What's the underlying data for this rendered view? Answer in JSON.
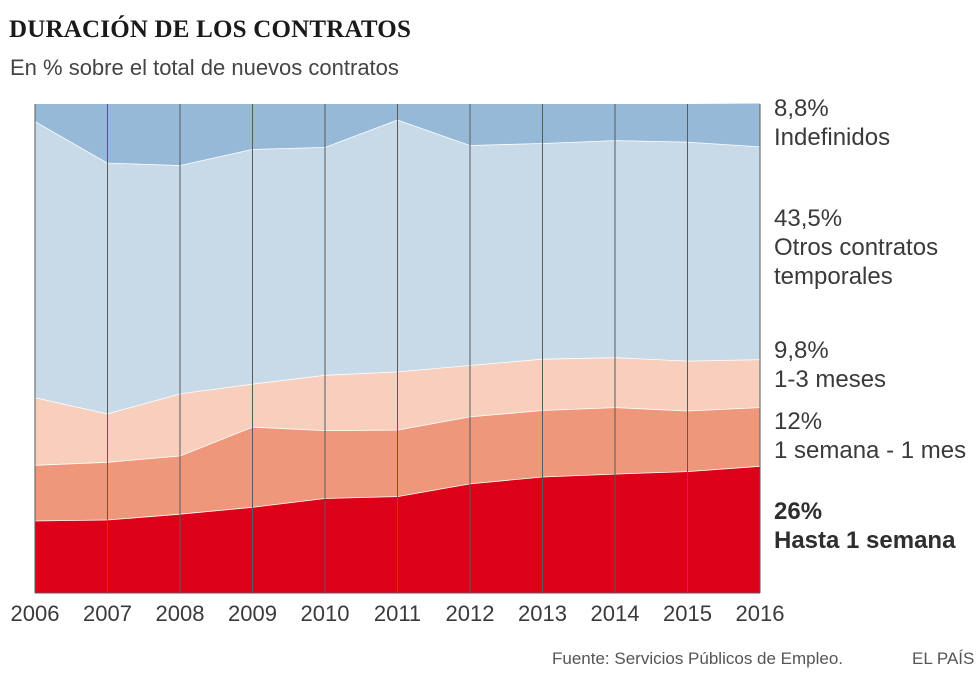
{
  "header": {
    "title": "DURACIÓN DE LOS CONTRATOS",
    "subtitle": "En % sobre el total de nuevos contratos"
  },
  "labels": [
    {
      "value": "8,8%",
      "name": "Indefinidos"
    },
    {
      "value": "43,5%",
      "name": "Otros contratos",
      "name2": "temporales"
    },
    {
      "value": "9,8%",
      "name": "1-3 meses"
    },
    {
      "value": "12%",
      "name": "1 semana - 1 mes"
    },
    {
      "value": "26%",
      "name": "Hasta 1 semana"
    }
  ],
  "footer": {
    "source": "Fuente: Servicios Públicos de Empleo.",
    "brand": "EL PAÍS"
  },
  "chart_data": {
    "type": "area",
    "stacked": true,
    "normalized_to": 100,
    "title": "DURACIÓN DE LOS CONTRATOS",
    "subtitle": "En % sobre el total de nuevos contratos",
    "ylabel": "%",
    "ylim": [
      0,
      100
    ],
    "grid": "vertical lines at each year",
    "categories": [
      "2006",
      "2007",
      "2008",
      "2009",
      "2010",
      "2011",
      "2012",
      "2013",
      "2014",
      "2015",
      "2016"
    ],
    "series": [
      {
        "name": "Hasta 1 semana",
        "color": "#dd0019",
        "values": [
          14.8,
          15.0,
          16.2,
          17.6,
          19.4,
          19.8,
          22.4,
          23.8,
          24.4,
          24.9,
          26.0
        ]
      },
      {
        "name": "1 semana - 1 mes",
        "color": "#ef977a",
        "values": [
          11.4,
          11.8,
          11.9,
          16.4,
          13.9,
          13.6,
          13.7,
          13.6,
          13.6,
          12.4,
          12.0
        ]
      },
      {
        "name": "1-3 meses",
        "color": "#f8cfbd",
        "values": [
          13.8,
          9.9,
          12.7,
          8.8,
          11.3,
          11.9,
          10.5,
          10.5,
          10.2,
          10.2,
          9.8
        ]
      },
      {
        "name": "Otros contratos temporales",
        "color": "#c8dae8",
        "values": [
          56.5,
          51.3,
          46.7,
          48.0,
          46.6,
          51.5,
          45.0,
          44.1,
          44.4,
          44.8,
          43.5
        ]
      },
      {
        "name": "Indefinidos",
        "color": "#95b9d6",
        "values": [
          3.5,
          12.0,
          12.5,
          9.2,
          8.8,
          3.2,
          8.4,
          8.0,
          7.4,
          7.7,
          8.8
        ]
      }
    ]
  }
}
